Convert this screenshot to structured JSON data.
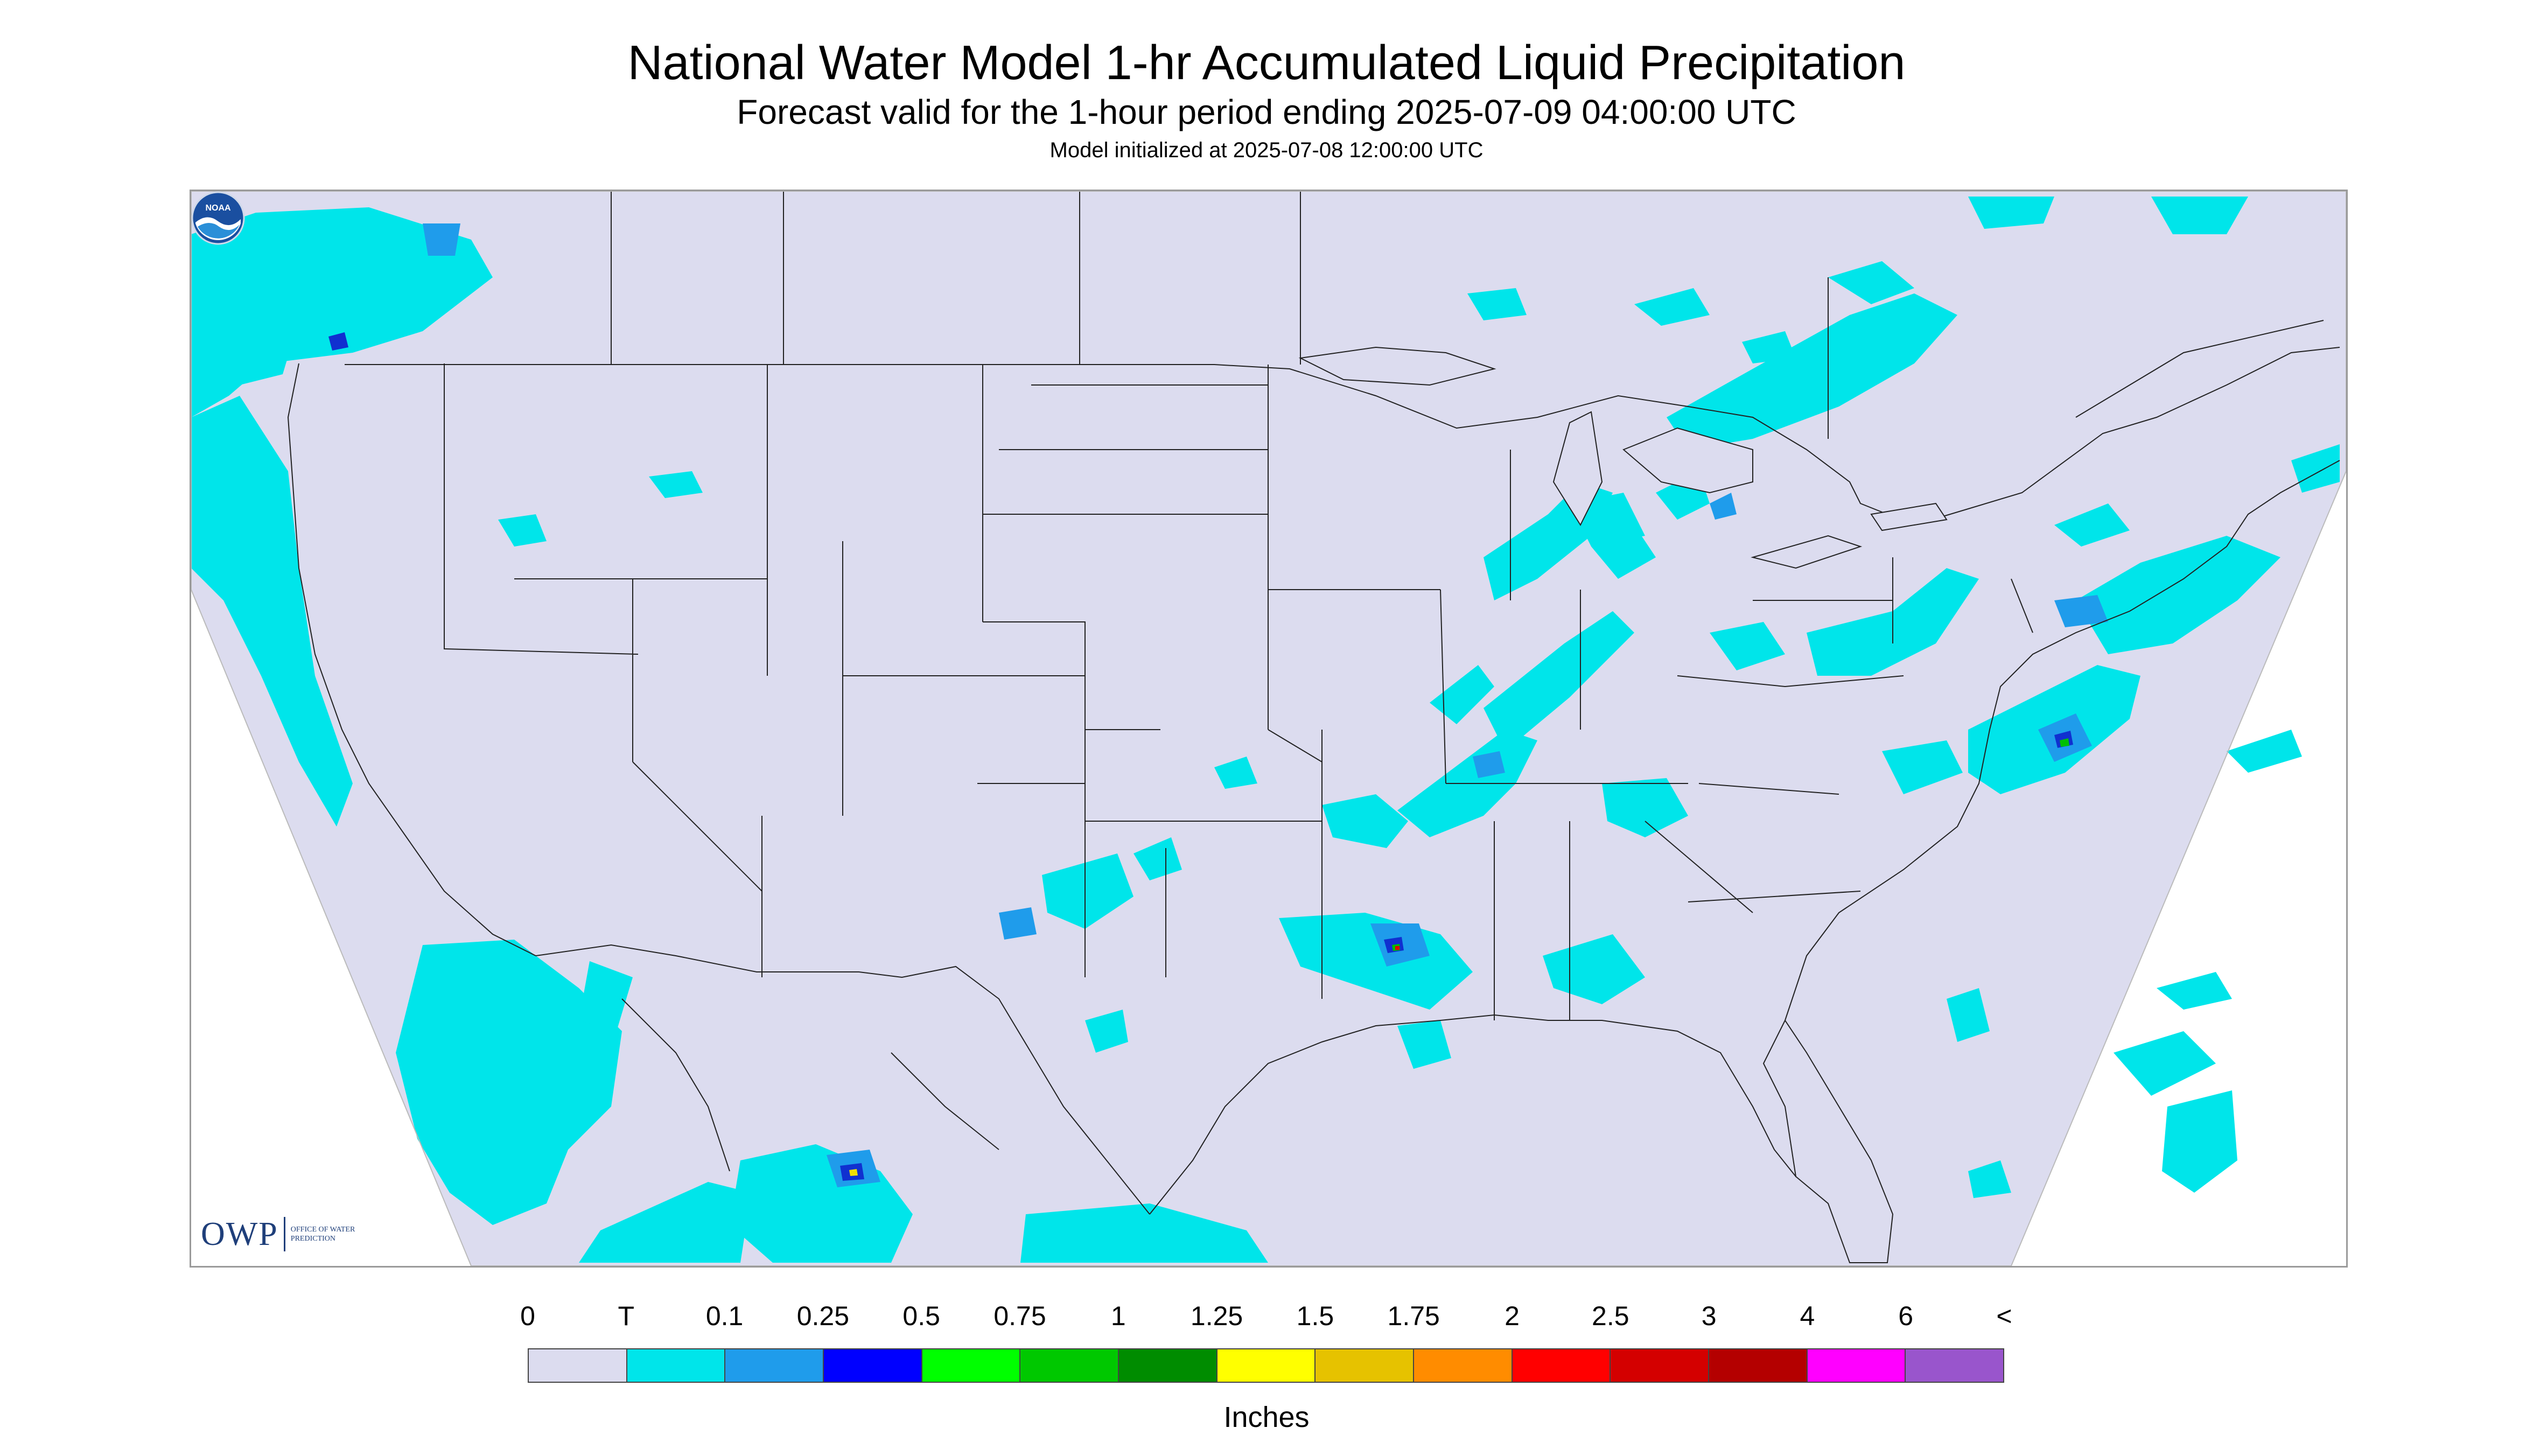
{
  "title": "National Water Model 1-hr Accumulated Liquid Precipitation",
  "subtitle": "Forecast valid for the 1-hour period ending 2025-07-09 04:00:00 UTC",
  "init": "Model initialized at 2025-07-08 12:00:00 UTC",
  "map": {
    "background": "#dcdcef",
    "outside": "#ffffff",
    "precip_light": "#00e5ea",
    "precip_medium": "#1f9ceb",
    "precip_heavy": "#1030d0",
    "precip_green": "#00c000",
    "precip_yellow": "#f0e000",
    "precip_red": "#e00000",
    "boundary_color": "#222222"
  },
  "logos": {
    "owp_mark": "OWP",
    "owp_text": "OFFICE OF WATER PREDICTION",
    "noaa_icon": "noaa-logo-icon",
    "noaa_text": "NOAA"
  },
  "legend": {
    "labels": [
      "0",
      "T",
      "0.1",
      "0.25",
      "0.5",
      "0.75",
      "1",
      "1.25",
      "1.5",
      "1.75",
      "2",
      "2.5",
      "3",
      "4",
      "6",
      "<"
    ],
    "colors": [
      "#dcdcef",
      "#00e5ea",
      "#1f9ceb",
      "#0000ff",
      "#00ff00",
      "#00c800",
      "#008c00",
      "#ffff00",
      "#e6c200",
      "#ff8c00",
      "#ff0000",
      "#d40000",
      "#b40000",
      "#ff00ff",
      "#9955cc"
    ],
    "units": "Inches"
  }
}
